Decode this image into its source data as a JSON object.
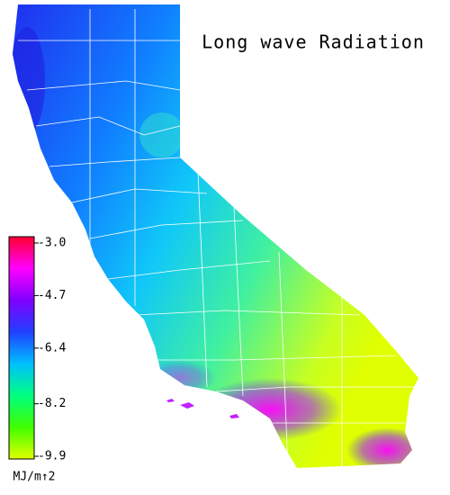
{
  "title": "Long wave Radiation",
  "colorbar": {
    "unit": "MJ/m↑2",
    "lim": [
      -3.0,
      -9.9
    ],
    "ticks": [
      {
        "value": -3.0,
        "label": "-3.0"
      },
      {
        "value": -4.7,
        "label": "-4.7"
      },
      {
        "value": -6.4,
        "label": "-6.4"
      },
      {
        "value": -8.2,
        "label": "-8.2"
      },
      {
        "value": -9.9,
        "label": "-9.9"
      }
    ],
    "colors": [
      "#ff0030",
      "#ff00ff",
      "#8000ff",
      "#2040ff",
      "#00c0ff",
      "#00ff80",
      "#40ff00",
      "#e0ff00"
    ]
  }
}
